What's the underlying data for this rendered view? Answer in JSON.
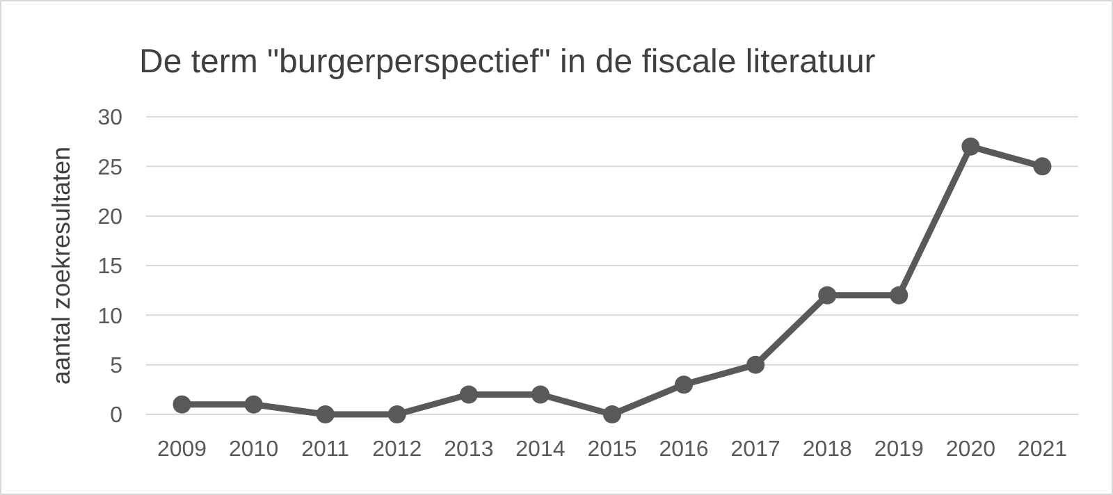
{
  "chart_data": {
    "type": "line",
    "title": "De term \"burgerperspectief\" in de fiscale literatuur",
    "ylabel": "aantal zoekresultaten",
    "categories": [
      "2009",
      "2010",
      "2011",
      "2012",
      "2013",
      "2014",
      "2015",
      "2016",
      "2017",
      "2018",
      "2019",
      "2020",
      "2021"
    ],
    "series": [
      {
        "color": "#595959",
        "values": [
          1,
          1,
          0,
          0,
          2,
          2,
          0,
          3,
          5,
          12,
          12,
          27,
          25
        ]
      }
    ],
    "ylim": [
      0,
      30
    ],
    "yticks": [
      0,
      5,
      10,
      15,
      20,
      25,
      30
    ],
    "grid": "y",
    "marker": "circle",
    "line_style": "solid"
  }
}
